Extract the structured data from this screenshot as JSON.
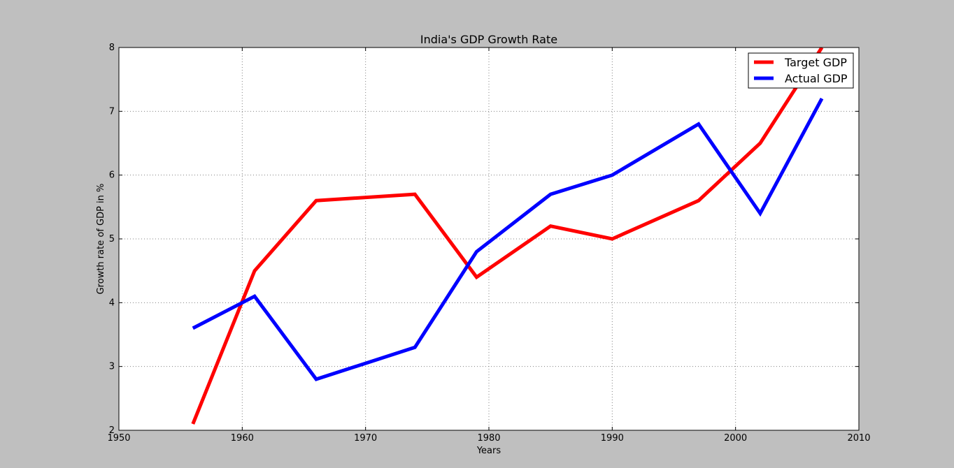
{
  "chart_data": {
    "type": "line",
    "title": "India's GDP Growth Rate",
    "xlabel": "Years",
    "ylabel": "Growth rate of GDP in %",
    "xlim": [
      1950,
      2010
    ],
    "ylim": [
      2,
      8
    ],
    "xticks": [
      "1950",
      "1960",
      "1970",
      "1980",
      "1990",
      "2000",
      "2010"
    ],
    "yticks": [
      "2",
      "3",
      "4",
      "5",
      "6",
      "7",
      "8"
    ],
    "grid": true,
    "legend_position": "top-right",
    "series": [
      {
        "name": "Target GDP",
        "color": "#ff0000",
        "x": [
          1956,
          1961,
          1966,
          1974,
          1979,
          1985,
          1990,
          1997,
          2002,
          2007
        ],
        "y": [
          2.1,
          4.5,
          5.6,
          5.7,
          4.4,
          5.2,
          5.0,
          5.6,
          6.5,
          8.0
        ]
      },
      {
        "name": "Actual GDP",
        "color": "#0000ff",
        "x": [
          1956,
          1961,
          1966,
          1974,
          1979,
          1985,
          1990,
          1997,
          2002,
          2007
        ],
        "y": [
          3.6,
          4.1,
          2.8,
          3.3,
          4.8,
          5.7,
          6.0,
          6.8,
          5.4,
          7.2
        ]
      }
    ]
  }
}
